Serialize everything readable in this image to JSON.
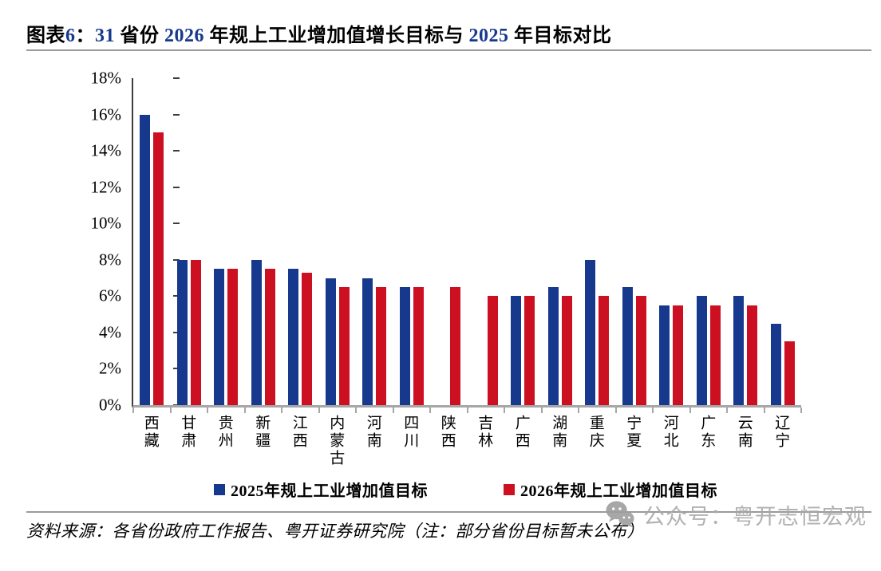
{
  "header": {
    "title": "图表6：31 省份 2026 年规上工业增加值增长目标与 2025 年目标对比",
    "title_runs": [
      {
        "text": "图表",
        "num": false
      },
      {
        "text": "6",
        "num": true
      },
      {
        "text": "：",
        "num": false
      },
      {
        "text": "31",
        "num": true
      },
      {
        "text": " 省份 ",
        "num": false
      },
      {
        "text": "2026",
        "num": true
      },
      {
        "text": " 年规上工业增加值增长目标与 ",
        "num": false
      },
      {
        "text": "2025",
        "num": true
      },
      {
        "text": " 年目标对比",
        "num": false
      }
    ]
  },
  "chart_data": {
    "type": "bar",
    "title": "31省份2026年规上工业增加值增长目标与2025年目标对比",
    "categories": [
      "西藏",
      "甘肃",
      "贵州",
      "新疆",
      "江西",
      "内蒙古",
      "河南",
      "四川",
      "陕西",
      "吉林",
      "广西",
      "湖南",
      "重庆",
      "宁夏",
      "河北",
      "广东",
      "云南",
      "辽宁"
    ],
    "series": [
      {
        "name": "2025年规上工业增加值目标",
        "color": "#16398E",
        "values": [
          16,
          8,
          7.5,
          8,
          7.5,
          7,
          7,
          6.5,
          null,
          null,
          6,
          6.5,
          8,
          6.5,
          5.5,
          6,
          6,
          4.5
        ]
      },
      {
        "name": "2026年规上工业增加值目标",
        "color": "#CC1021",
        "values": [
          15,
          8,
          7.5,
          7.5,
          7.3,
          6.5,
          6.5,
          6.5,
          6.5,
          6,
          6,
          6,
          6,
          6,
          5.5,
          5.5,
          5.5,
          3.5
        ]
      }
    ],
    "xlabel": "",
    "ylabel": "",
    "ylim": [
      0,
      18
    ],
    "ytick_step": 2,
    "ytick_suffix": "%",
    "grid": false,
    "legend_position": "bottom"
  },
  "footer": {
    "source": "资料来源：各省份政府工作报告、粤开证券研究院（注：部分省份目标暂未公布）"
  },
  "watermark": {
    "icon": "wechat-icon",
    "text": "公众号：粤开志恒宏观",
    "color": "#a9a9a9"
  }
}
